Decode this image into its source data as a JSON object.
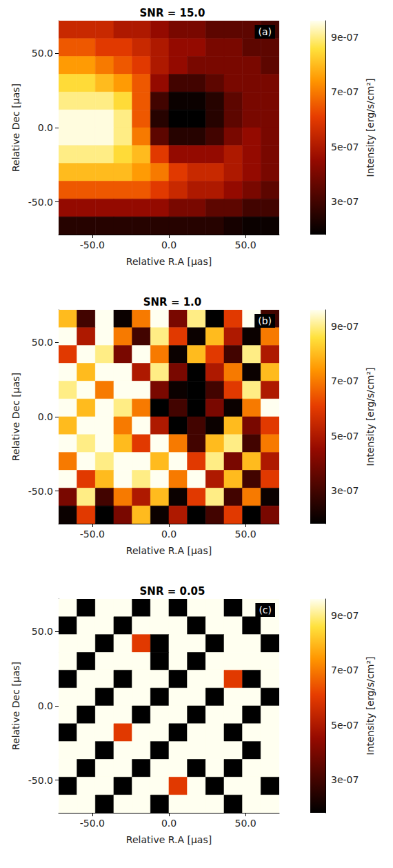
{
  "chart_data": [
    {
      "type": "heatmap",
      "title": "SNR = 15.0",
      "panel": "(a)",
      "x_label": "Relative R.A [µas]",
      "y_label": "Relative Dec [µas]",
      "xlim": [
        -72,
        72
      ],
      "ylim": [
        -72,
        72
      ],
      "xticks": [
        {
          "value": -50,
          "label": "-50.0"
        },
        {
          "value": 0,
          "label": "0.0"
        },
        {
          "value": 50,
          "label": "50.0"
        }
      ],
      "yticks": [
        {
          "value": -50,
          "label": "-50.0"
        },
        {
          "value": 0,
          "label": "0.0"
        },
        {
          "value": 50,
          "label": "50.0"
        }
      ],
      "x": [
        -66,
        -54,
        -42,
        -30,
        -18,
        -6,
        6,
        18,
        30,
        42,
        54,
        66
      ],
      "y": [
        66,
        54,
        42,
        30,
        18,
        6,
        -6,
        -18,
        -30,
        -42,
        -54,
        -66
      ],
      "z": [
        [
          5.5e-07,
          5.5e-07,
          5.5e-07,
          5e-07,
          5e-07,
          4.5e-07,
          4e-07,
          4e-07,
          3.5e-07,
          3.5e-07,
          3.5e-07,
          3e-07
        ],
        [
          6.5e-07,
          6.5e-07,
          6e-07,
          6e-07,
          5.5e-07,
          5e-07,
          4.5e-07,
          4.5e-07,
          4e-07,
          4e-07,
          3.5e-07,
          3.5e-07
        ],
        [
          7.5e-07,
          7.5e-07,
          7e-07,
          6.5e-07,
          6e-07,
          5e-07,
          4.5e-07,
          4e-07,
          4e-07,
          4e-07,
          4e-07,
          3.5e-07
        ],
        [
          8.5e-07,
          8.5e-07,
          8e-07,
          7.5e-07,
          6.5e-07,
          4.5e-07,
          3e-07,
          3e-07,
          3.5e-07,
          4e-07,
          4e-07,
          4e-07
        ],
        [
          9e-07,
          9e-07,
          9e-07,
          8.5e-07,
          6.5e-07,
          3e-07,
          2e-07,
          2e-07,
          2.5e-07,
          3.5e-07,
          4e-07,
          4e-07
        ],
        [
          9.5e-07,
          9.5e-07,
          9.5e-07,
          9e-07,
          6.5e-07,
          2.5e-07,
          1.8e-07,
          1.8e-07,
          2.5e-07,
          3.5e-07,
          4e-07,
          4e-07
        ],
        [
          9.5e-07,
          9.5e-07,
          9.5e-07,
          9e-07,
          7e-07,
          3.5e-07,
          2.5e-07,
          2.5e-07,
          3e-07,
          4e-07,
          4.5e-07,
          4e-07
        ],
        [
          9e-07,
          9e-07,
          9e-07,
          8.5e-07,
          8e-07,
          6e-07,
          4.5e-07,
          4.5e-07,
          4.5e-07,
          5e-07,
          4.5e-07,
          4e-07
        ],
        [
          8e-07,
          8e-07,
          8e-07,
          8e-07,
          7.5e-07,
          7e-07,
          6e-07,
          5.5e-07,
          5.5e-07,
          5e-07,
          4.5e-07,
          4e-07
        ],
        [
          6.5e-07,
          6.5e-07,
          6.5e-07,
          6.5e-07,
          6.5e-07,
          6e-07,
          5.5e-07,
          5e-07,
          5e-07,
          4.5e-07,
          4e-07,
          3.5e-07
        ],
        [
          4.5e-07,
          4.5e-07,
          4.5e-07,
          4.5e-07,
          4.5e-07,
          4.5e-07,
          4e-07,
          4e-07,
          3.5e-07,
          3.5e-07,
          3e-07,
          3e-07
        ],
        [
          2.5e-07,
          2.5e-07,
          2.5e-07,
          2.5e-07,
          2.5e-07,
          2.5e-07,
          2.5e-07,
          2.5e-07,
          2.5e-07,
          2.2e-07,
          2e-07,
          2e-07
        ]
      ],
      "colorbar": {
        "label": "Intensity [erg/s/cm²]",
        "range": [
          1.8e-07,
          9.6e-07
        ],
        "ticks": [
          {
            "value": 3e-07,
            "label": "3e-07"
          },
          {
            "value": 5e-07,
            "label": "5e-07"
          },
          {
            "value": 7e-07,
            "label": "7e-07"
          },
          {
            "value": 9e-07,
            "label": "9e-07"
          }
        ]
      }
    },
    {
      "type": "heatmap",
      "title": "SNR = 1.0",
      "panel": "(b)",
      "x_label": "Relative R.A [µas]",
      "y_label": "Relative Dec [µas]",
      "xlim": [
        -72,
        72
      ],
      "ylim": [
        -72,
        72
      ],
      "xticks": [
        {
          "value": -50,
          "label": "-50.0"
        },
        {
          "value": 0,
          "label": "0.0"
        },
        {
          "value": 50,
          "label": "50.0"
        }
      ],
      "yticks": [
        {
          "value": -50,
          "label": "-50.0"
        },
        {
          "value": 0,
          "label": "0.0"
        },
        {
          "value": 50,
          "label": "50.0"
        }
      ],
      "x": [
        -66,
        -54,
        -42,
        -30,
        -18,
        -6,
        6,
        18,
        30,
        42,
        54,
        66
      ],
      "y": [
        66,
        54,
        42,
        30,
        18,
        6,
        -6,
        -18,
        -30,
        -42,
        -54,
        -66
      ],
      "z": [
        [
          8e-07,
          3e-07,
          1.1e-06,
          2e-07,
          7e-07,
          1.2e-06,
          4e-07,
          9e-07,
          1.5e-07,
          6e-07,
          1e-06,
          3e-07
        ],
        [
          1e-06,
          5e-07,
          1.2e-06,
          7e-07,
          3e-07,
          9e-07,
          6e-07,
          2e-07,
          8e-07,
          5e-07,
          2e-07,
          7e-07
        ],
        [
          6e-07,
          1.2e-06,
          9e-07,
          4e-07,
          1.1e-06,
          7e-07,
          2e-07,
          8e-07,
          6e-07,
          3e-07,
          9e-07,
          5e-07
        ],
        [
          1.2e-06,
          8e-07,
          1.1e-06,
          1e-06,
          5e-07,
          9e-07,
          4e-07,
          1.5e-07,
          5e-07,
          7e-07,
          2e-07,
          8e-07
        ],
        [
          9e-07,
          1.2e-06,
          7e-07,
          1.1e-06,
          1e-06,
          4e-07,
          2e-07,
          1.5e-07,
          3e-07,
          6e-07,
          9e-07,
          5e-07
        ],
        [
          1.1e-06,
          8e-07,
          1.2e-06,
          9e-07,
          7e-07,
          1.5e-07,
          3e-07,
          1.5e-07,
          4e-07,
          2e-07,
          7e-07,
          1e-06
        ],
        [
          8e-07,
          1.2e-06,
          1e-06,
          7e-07,
          1.1e-06,
          5e-07,
          1.5e-07,
          3e-07,
          2e-07,
          8e-07,
          4e-07,
          6e-07
        ],
        [
          1.2e-06,
          9e-07,
          1.1e-06,
          8e-07,
          6e-07,
          1e-06,
          7e-07,
          3e-07,
          8e-07,
          9e-07,
          3e-07,
          7e-07
        ],
        [
          7e-07,
          1.1e-06,
          9e-07,
          1.2e-06,
          1e-06,
          8e-07,
          1.1e-06,
          6e-07,
          9e-07,
          4e-07,
          8e-07,
          5e-07
        ],
        [
          1e-06,
          6e-07,
          8e-07,
          1.1e-06,
          9e-07,
          1.2e-06,
          7e-07,
          1e-06,
          5e-07,
          8e-07,
          3e-07,
          6e-07
        ],
        [
          4e-07,
          9e-07,
          3e-07,
          7e-07,
          5e-07,
          8e-07,
          2e-07,
          6e-07,
          9e-07,
          3e-07,
          7e-07,
          2e-07
        ],
        [
          2e-07,
          6e-07,
          1.5e-07,
          4e-07,
          8e-07,
          2e-07,
          5e-07,
          1.5e-07,
          3e-07,
          6e-07,
          1.5e-07,
          4e-07
        ]
      ],
      "colorbar": {
        "label": "Intensity [erg/s/cm²]",
        "range": [
          1.8e-07,
          9.6e-07
        ],
        "ticks": [
          {
            "value": 3e-07,
            "label": "3e-07"
          },
          {
            "value": 5e-07,
            "label": "5e-07"
          },
          {
            "value": 7e-07,
            "label": "7e-07"
          },
          {
            "value": 9e-07,
            "label": "9e-07"
          }
        ]
      }
    },
    {
      "type": "heatmap",
      "title": "SNR = 0.05",
      "panel": "(c)",
      "x_label": "Relative R.A [µas]",
      "y_label": "Relative Dec [µas]",
      "xlim": [
        -72,
        72
      ],
      "ylim": [
        -72,
        72
      ],
      "xticks": [
        {
          "value": -50,
          "label": "-50.0"
        },
        {
          "value": 0,
          "label": "0.0"
        },
        {
          "value": 50,
          "label": "50.0"
        }
      ],
      "yticks": [
        {
          "value": -50,
          "label": "-50.0"
        },
        {
          "value": 0,
          "label": "0.0"
        },
        {
          "value": 50,
          "label": "50.0"
        }
      ],
      "x": [
        -66,
        -54,
        -42,
        -30,
        -18,
        -6,
        6,
        18,
        30,
        42,
        54,
        66
      ],
      "y": [
        66,
        54,
        42,
        30,
        18,
        6,
        -6,
        -18,
        -30,
        -42,
        -54,
        -66
      ],
      "z": [
        [
          1.2e-06,
          1e-07,
          1.2e-06,
          1.2e-06,
          1e-07,
          1.2e-06,
          1e-07,
          1.2e-06,
          1.2e-06,
          1e-07,
          1.2e-06,
          1.2e-06
        ],
        [
          1e-07,
          1.2e-06,
          1.2e-06,
          1e-07,
          1.2e-06,
          1.2e-06,
          1.2e-06,
          1e-07,
          1.2e-06,
          1.2e-06,
          1e-07,
          1.2e-06
        ],
        [
          1.2e-06,
          1.2e-06,
          1e-07,
          1.2e-06,
          6e-07,
          1e-07,
          1.2e-06,
          1.2e-06,
          1e-07,
          1.2e-06,
          1.2e-06,
          1e-07
        ],
        [
          1.2e-06,
          1e-07,
          1.2e-06,
          1.2e-06,
          1.2e-06,
          1e-07,
          1.2e-06,
          1e-07,
          1.2e-06,
          1.2e-06,
          1.2e-06,
          1.2e-06
        ],
        [
          1e-07,
          1.2e-06,
          1.2e-06,
          1e-07,
          1.2e-06,
          1.2e-06,
          1e-07,
          1.2e-06,
          1.2e-06,
          6e-07,
          1e-07,
          1.2e-06
        ],
        [
          1.2e-06,
          1.2e-06,
          1e-07,
          1.2e-06,
          1.2e-06,
          1e-07,
          1.2e-06,
          1.2e-06,
          1e-07,
          1.2e-06,
          1.2e-06,
          1e-07
        ],
        [
          1.2e-06,
          1e-07,
          1.2e-06,
          1.2e-06,
          1e-07,
          1.2e-06,
          1.2e-06,
          1e-07,
          1.2e-06,
          1.2e-06,
          1e-07,
          1.2e-06
        ],
        [
          1e-07,
          1.2e-06,
          1.2e-06,
          6e-07,
          1.2e-06,
          1.2e-06,
          1e-07,
          1.2e-06,
          1.2e-06,
          1e-07,
          1.2e-06,
          1.2e-06
        ],
        [
          1.2e-06,
          1.2e-06,
          1e-07,
          1.2e-06,
          1.2e-06,
          1e-07,
          1.2e-06,
          1.2e-06,
          1.2e-06,
          1.2e-06,
          1e-07,
          1.2e-06
        ],
        [
          1.2e-06,
          1e-07,
          1.2e-06,
          1.2e-06,
          1e-07,
          1.2e-06,
          1.2e-06,
          1e-07,
          1.2e-06,
          1e-07,
          1.2e-06,
          1.2e-06
        ],
        [
          1e-07,
          1.2e-06,
          1.2e-06,
          1e-07,
          1.2e-06,
          1.2e-06,
          6e-07,
          1.2e-06,
          1e-07,
          1.2e-06,
          1.2e-06,
          1e-07
        ],
        [
          1.2e-06,
          1.2e-06,
          1e-07,
          1.2e-06,
          1.2e-06,
          1e-07,
          1.2e-06,
          1.2e-06,
          1.2e-06,
          1e-07,
          1.2e-06,
          1.2e-06
        ]
      ],
      "colorbar": {
        "label": "Intensity [erg/s/cm²]",
        "range": [
          1.8e-07,
          9.6e-07
        ],
        "ticks": [
          {
            "value": 3e-07,
            "label": "3e-07"
          },
          {
            "value": 5e-07,
            "label": "5e-07"
          },
          {
            "value": 7e-07,
            "label": "7e-07"
          },
          {
            "value": 9e-07,
            "label": "9e-07"
          }
        ]
      }
    }
  ]
}
